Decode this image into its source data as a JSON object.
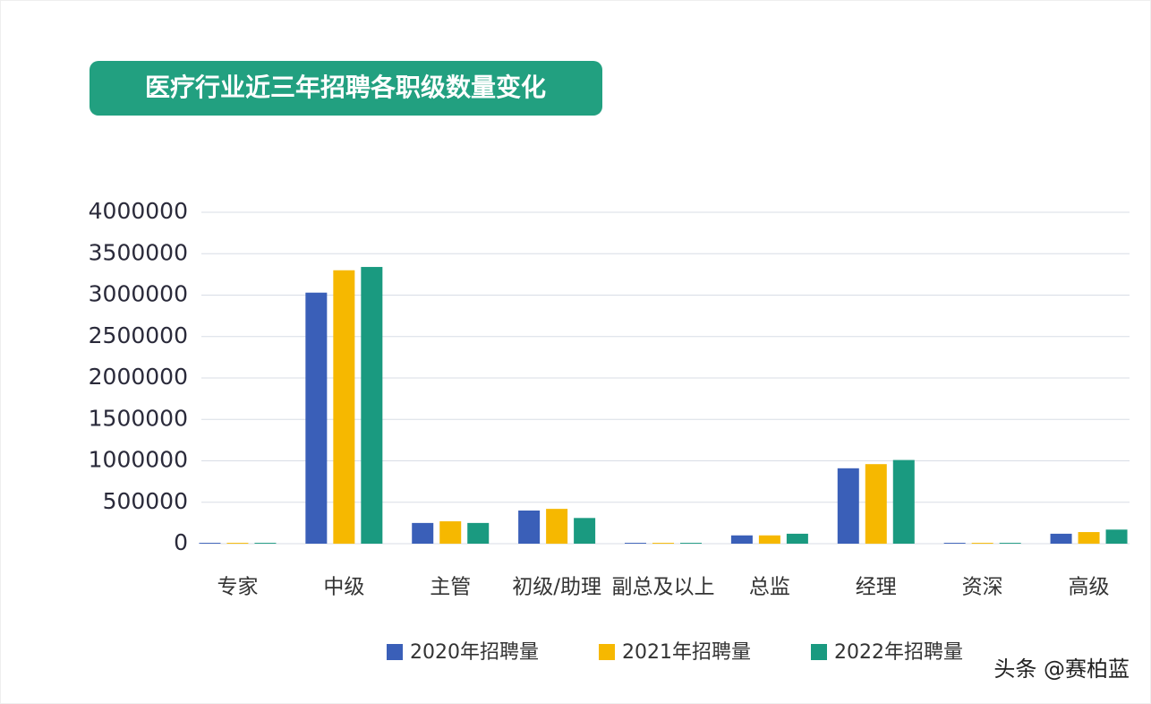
{
  "chart_data": {
    "type": "bar",
    "title": "医疗行业近三年招聘各职级数量变化",
    "categories": [
      "专家",
      "中级",
      "主管",
      "初级/助理",
      "副总及以上",
      "总监",
      "经理",
      "资深",
      "高级"
    ],
    "series": [
      {
        "name": "2020年招聘量",
        "color": "#3a5fb8",
        "values": [
          10000,
          3030000,
          250000,
          400000,
          10000,
          100000,
          910000,
          10000,
          120000
        ]
      },
      {
        "name": "2021年招聘量",
        "color": "#f6b800",
        "values": [
          10000,
          3300000,
          270000,
          420000,
          10000,
          100000,
          960000,
          10000,
          140000
        ]
      },
      {
        "name": "2022年招聘量",
        "color": "#1a9a80",
        "values": [
          10000,
          3340000,
          250000,
          310000,
          10000,
          120000,
          1010000,
          10000,
          170000
        ]
      }
    ],
    "ylim": [
      0,
      4000000
    ],
    "yticks": [
      0,
      500000,
      1000000,
      1500000,
      2000000,
      2500000,
      3000000,
      3500000,
      4000000
    ],
    "grid": true,
    "legend": "bottom",
    "watermark": "头条 @赛柏蓝"
  }
}
